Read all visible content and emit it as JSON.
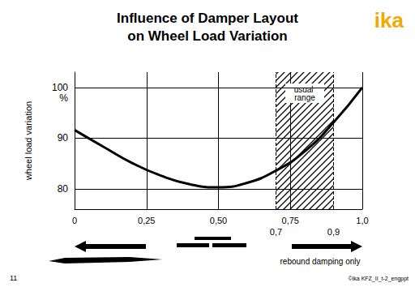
{
  "chart_data": {
    "type": "line",
    "title": "Influence of Damper Layout\non Wheel Load Variation",
    "y_label": "wheel load variation",
    "y_unit": "%",
    "x": [
      0,
      0.1,
      0.2,
      0.3,
      0.4,
      0.5,
      0.6,
      0.7,
      0.8,
      0.9,
      1.0
    ],
    "values": [
      91.6,
      88.3,
      85.1,
      82.6,
      80.9,
      80.3,
      81.2,
      83.6,
      87.4,
      93.1,
      100
    ],
    "color": "#000000",
    "xlim": [
      0,
      1
    ],
    "xticks": [
      0,
      {
        "value": 0.25,
        "label": "0,25"
      },
      {
        "value": 0.5,
        "label": "0,50"
      },
      {
        "value": 0.75,
        "label": "0,75"
      },
      {
        "value": 1,
        "label": "1,0"
      }
    ],
    "ylim": [
      76,
      103
    ],
    "yticks": [
      80,
      90,
      100
    ],
    "grid": true,
    "shaded_range": {
      "label": "usual range",
      "from": {
        "value": 0.7,
        "label": "0,7"
      },
      "to": {
        "value": 0.9,
        "label": "0,9"
      }
    },
    "annotations": [
      "rebound damping only"
    ],
    "logo": "ika",
    "page_number": "11",
    "footer": "©ika KFZ_II_t-2_engppt"
  }
}
